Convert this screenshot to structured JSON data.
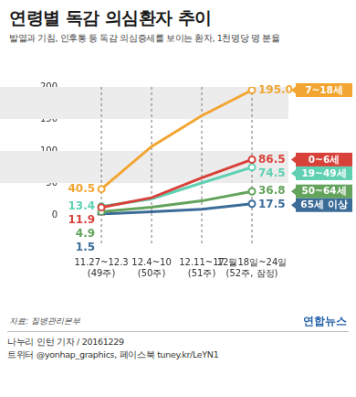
{
  "chart_data": {
    "type": "line",
    "title": "연령별 독감 의심환자 추이",
    "subtitle": "발열과 기침, 인후통 등 독감 의심증세를 보이는 환자, 1천명당 명 분율",
    "categories": [
      [
        "11.27~12.3",
        "(49주)"
      ],
      [
        "12.4~10",
        "(50주)"
      ],
      [
        "12.11~17",
        "(51주)"
      ],
      [
        "12월18일~24일",
        "(52주, 잠정)"
      ]
    ],
    "series": [
      {
        "name": "7~18세",
        "color": "#f2a531",
        "values": [
          40.5,
          107,
          155,
          195.0
        ],
        "value_labels": [
          "40.5",
          null,
          null,
          "195.0"
        ]
      },
      {
        "name": "0~6세",
        "color": "#d8413a",
        "values": [
          11.9,
          27,
          58,
          86.5
        ],
        "value_labels": [
          "11.9",
          null,
          null,
          "86.5"
        ]
      },
      {
        "name": "19~49세",
        "color": "#5fd1b2",
        "values": [
          13.4,
          25,
          50,
          74.5
        ],
        "value_labels": [
          "13.4",
          null,
          null,
          "74.5"
        ]
      },
      {
        "name": "50~64세",
        "color": "#63a35c",
        "values": [
          4.9,
          12,
          22,
          36.8
        ],
        "value_labels": [
          "4.9",
          null,
          null,
          "36.8"
        ]
      },
      {
        "name": "65세 이상",
        "color": "#3b6c98",
        "values": [
          1.5,
          5,
          9,
          17.5
        ],
        "value_labels": [
          "1.5",
          null,
          null,
          "17.5"
        ]
      }
    ],
    "ylim": [
      0,
      200
    ],
    "yticks": [
      0,
      50,
      100,
      150,
      200
    ],
    "grid": true,
    "data_labels": true,
    "marker": "circle",
    "source": "자료: 질병관리본부",
    "byline": "나누리 인턴 기자 / 20161229",
    "social": "트위터 @yonhap_graphics, 페이스북 tuney.kr/LeYN1",
    "publisher": "연합뉴스"
  }
}
